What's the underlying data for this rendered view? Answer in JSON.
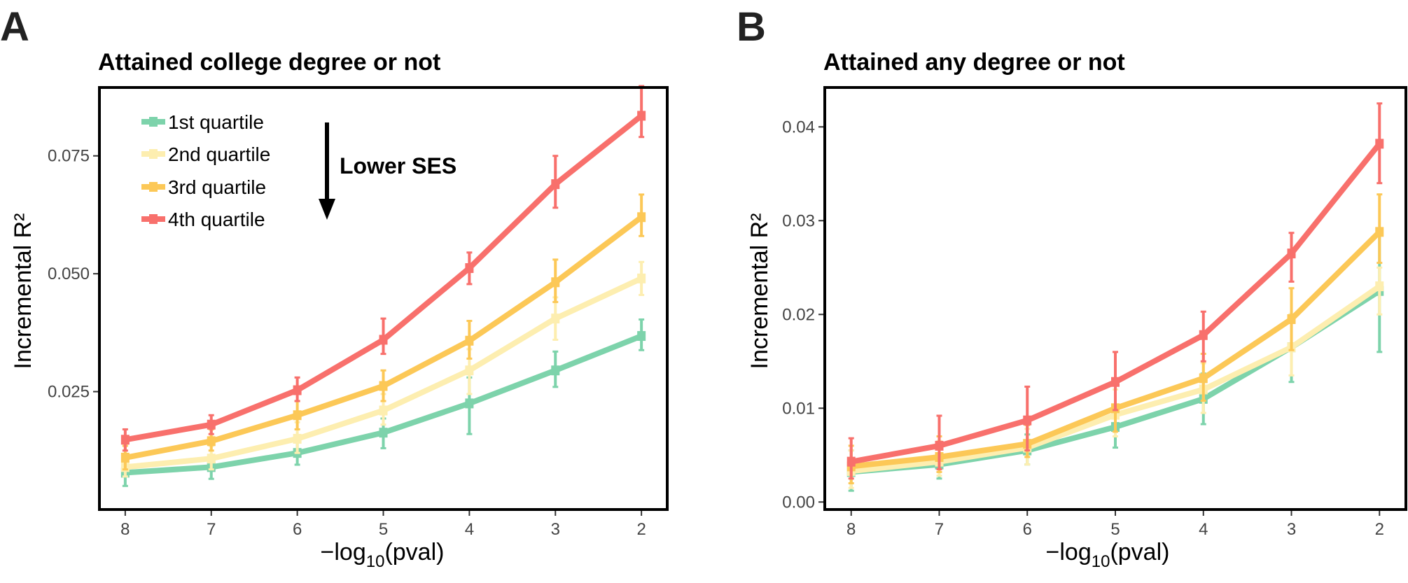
{
  "figure": {
    "panels": [
      {
        "letter": "A",
        "title": "Attained college degree or not",
        "xlabel_main": "−log",
        "xlabel_sub": "10",
        "xlabel_tail": "(pval)",
        "ylabel": "Incremental R²",
        "annotation": "Lower SES"
      },
      {
        "letter": "B",
        "title": "Attained any degree or not",
        "xlabel_main": "−log",
        "xlabel_sub": "10",
        "xlabel_tail": "(pval)",
        "ylabel": "Incremental R²",
        "annotation": ""
      }
    ],
    "legend": [
      "1st quartile",
      "2nd quartile",
      "3rd quartile",
      "4th quartile"
    ]
  },
  "chart_data": [
    {
      "type": "line",
      "title": "Attained college degree or not",
      "xlabel": "−log10(pval)",
      "ylabel": "Incremental R²",
      "x": [
        8,
        7,
        6,
        5,
        4,
        3,
        2
      ],
      "x_ticks": [
        "8",
        "7",
        "6",
        "5",
        "4",
        "3",
        "2"
      ],
      "x_reversed": true,
      "xlim": [
        8.3,
        1.7
      ],
      "ylim": [
        0.0,
        0.0895
      ],
      "y_ticks": [
        0.025,
        0.05,
        0.075
      ],
      "y_tick_labels": [
        "0.025",
        "0.050",
        "0.075"
      ],
      "grid": false,
      "legend_position": "top-left",
      "series": [
        {
          "name": "1st quartile",
          "color": "#7dd3ab",
          "values": [
            0.0078,
            0.009,
            0.012,
            0.0163,
            0.0225,
            0.0295,
            0.0368
          ],
          "err_low": [
            0.005,
            0.0065,
            0.0095,
            0.013,
            0.016,
            0.026,
            0.0338
          ],
          "err_high": [
            0.0103,
            0.0113,
            0.0145,
            0.0193,
            0.028,
            0.0335,
            0.0403
          ]
        },
        {
          "name": "2nd quartile",
          "color": "#fdeeb0",
          "values": [
            0.009,
            0.0108,
            0.015,
            0.021,
            0.0295,
            0.0405,
            0.049
          ],
          "err_low": [
            0.007,
            0.0085,
            0.012,
            0.018,
            0.0245,
            0.036,
            0.0455
          ],
          "err_high": [
            0.0115,
            0.0135,
            0.0185,
            0.0245,
            0.034,
            0.045,
            0.0525
          ]
        },
        {
          "name": "3rd quartile",
          "color": "#fcc857",
          "values": [
            0.011,
            0.0145,
            0.02,
            0.0262,
            0.0358,
            0.0482,
            0.062
          ],
          "err_low": [
            0.0085,
            0.0125,
            0.017,
            0.023,
            0.032,
            0.044,
            0.058
          ],
          "err_high": [
            0.0135,
            0.017,
            0.023,
            0.0295,
            0.04,
            0.053,
            0.0668
          ]
        },
        {
          "name": "4th quartile",
          "color": "#f8706c",
          "values": [
            0.0148,
            0.018,
            0.0253,
            0.036,
            0.0512,
            0.069,
            0.0835
          ],
          "err_low": [
            0.0125,
            0.016,
            0.023,
            0.033,
            0.0478,
            0.064,
            0.079
          ],
          "err_high": [
            0.017,
            0.02,
            0.028,
            0.0405,
            0.0545,
            0.075,
            0.0898
          ]
        }
      ]
    },
    {
      "type": "line",
      "title": "Attained any degree or not",
      "xlabel": "−log10(pval)",
      "ylabel": "Incremental R²",
      "x": [
        8,
        7,
        6,
        5,
        4,
        3,
        2
      ],
      "x_ticks": [
        "8",
        "7",
        "6",
        "5",
        "4",
        "3",
        "2"
      ],
      "x_reversed": true,
      "xlim": [
        8.3,
        1.7
      ],
      "ylim": [
        -0.0008,
        0.0442
      ],
      "y_ticks": [
        0.0,
        0.01,
        0.02,
        0.03,
        0.04
      ],
      "y_tick_labels": [
        "0.00",
        "0.01",
        "0.02",
        "0.03",
        "0.04"
      ],
      "grid": false,
      "legend_position": "none",
      "series": [
        {
          "name": "1st quartile",
          "color": "#7dd3ab",
          "values": [
            0.0032,
            0.004,
            0.0055,
            0.008,
            0.011,
            0.0165,
            0.0225
          ],
          "err_low": [
            0.0012,
            0.0025,
            0.004,
            0.0058,
            0.0083,
            0.0128,
            0.016
          ],
          "err_high": [
            0.0055,
            0.0062,
            0.0072,
            0.0102,
            0.0137,
            0.02,
            0.029
          ]
        },
        {
          "name": "2nd quartile",
          "color": "#fdeeb0",
          "values": [
            0.0033,
            0.0043,
            0.0058,
            0.0093,
            0.012,
            0.0165,
            0.023
          ],
          "err_low": [
            0.0015,
            0.0028,
            0.004,
            0.007,
            0.0095,
            0.0135,
            0.02
          ],
          "err_high": [
            0.0055,
            0.0065,
            0.0078,
            0.012,
            0.0148,
            0.02,
            0.025
          ]
        },
        {
          "name": "3rd quartile",
          "color": "#fcc857",
          "values": [
            0.0038,
            0.0048,
            0.0062,
            0.01,
            0.0132,
            0.0195,
            0.0288
          ],
          "err_low": [
            0.002,
            0.0032,
            0.0048,
            0.0075,
            0.0108,
            0.0162,
            0.0255
          ],
          "err_high": [
            0.006,
            0.007,
            0.0082,
            0.0125,
            0.0158,
            0.0228,
            0.0328
          ]
        },
        {
          "name": "4th quartile",
          "color": "#f8706c",
          "values": [
            0.0043,
            0.006,
            0.0087,
            0.0128,
            0.0178,
            0.0265,
            0.0382
          ],
          "err_low": [
            0.0025,
            0.0035,
            0.0055,
            0.0098,
            0.015,
            0.0235,
            0.034
          ],
          "err_high": [
            0.0068,
            0.0092,
            0.0123,
            0.016,
            0.0203,
            0.0287,
            0.0425
          ]
        }
      ]
    }
  ]
}
